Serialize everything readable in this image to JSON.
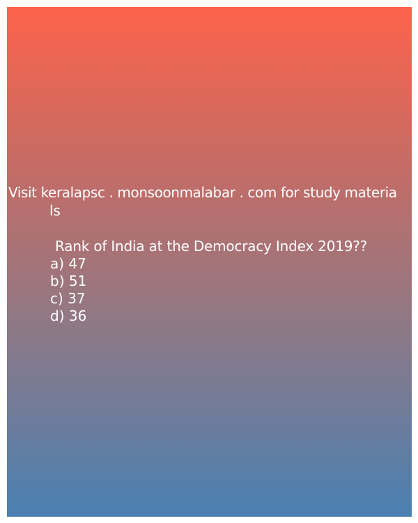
{
  "promo": {
    "line1": "Visit keralapsc . monsoonmalabar . com for study materia",
    "line2": "ls"
  },
  "question": "Rank of India at the Democracy Index 2019??",
  "options": [
    "a) 47",
    "b) 51",
    "c) 37",
    "d) 36"
  ],
  "colors": {
    "gradient_top": "#fd634b",
    "gradient_bottom": "#4a80b2",
    "text": "#ffffff"
  }
}
